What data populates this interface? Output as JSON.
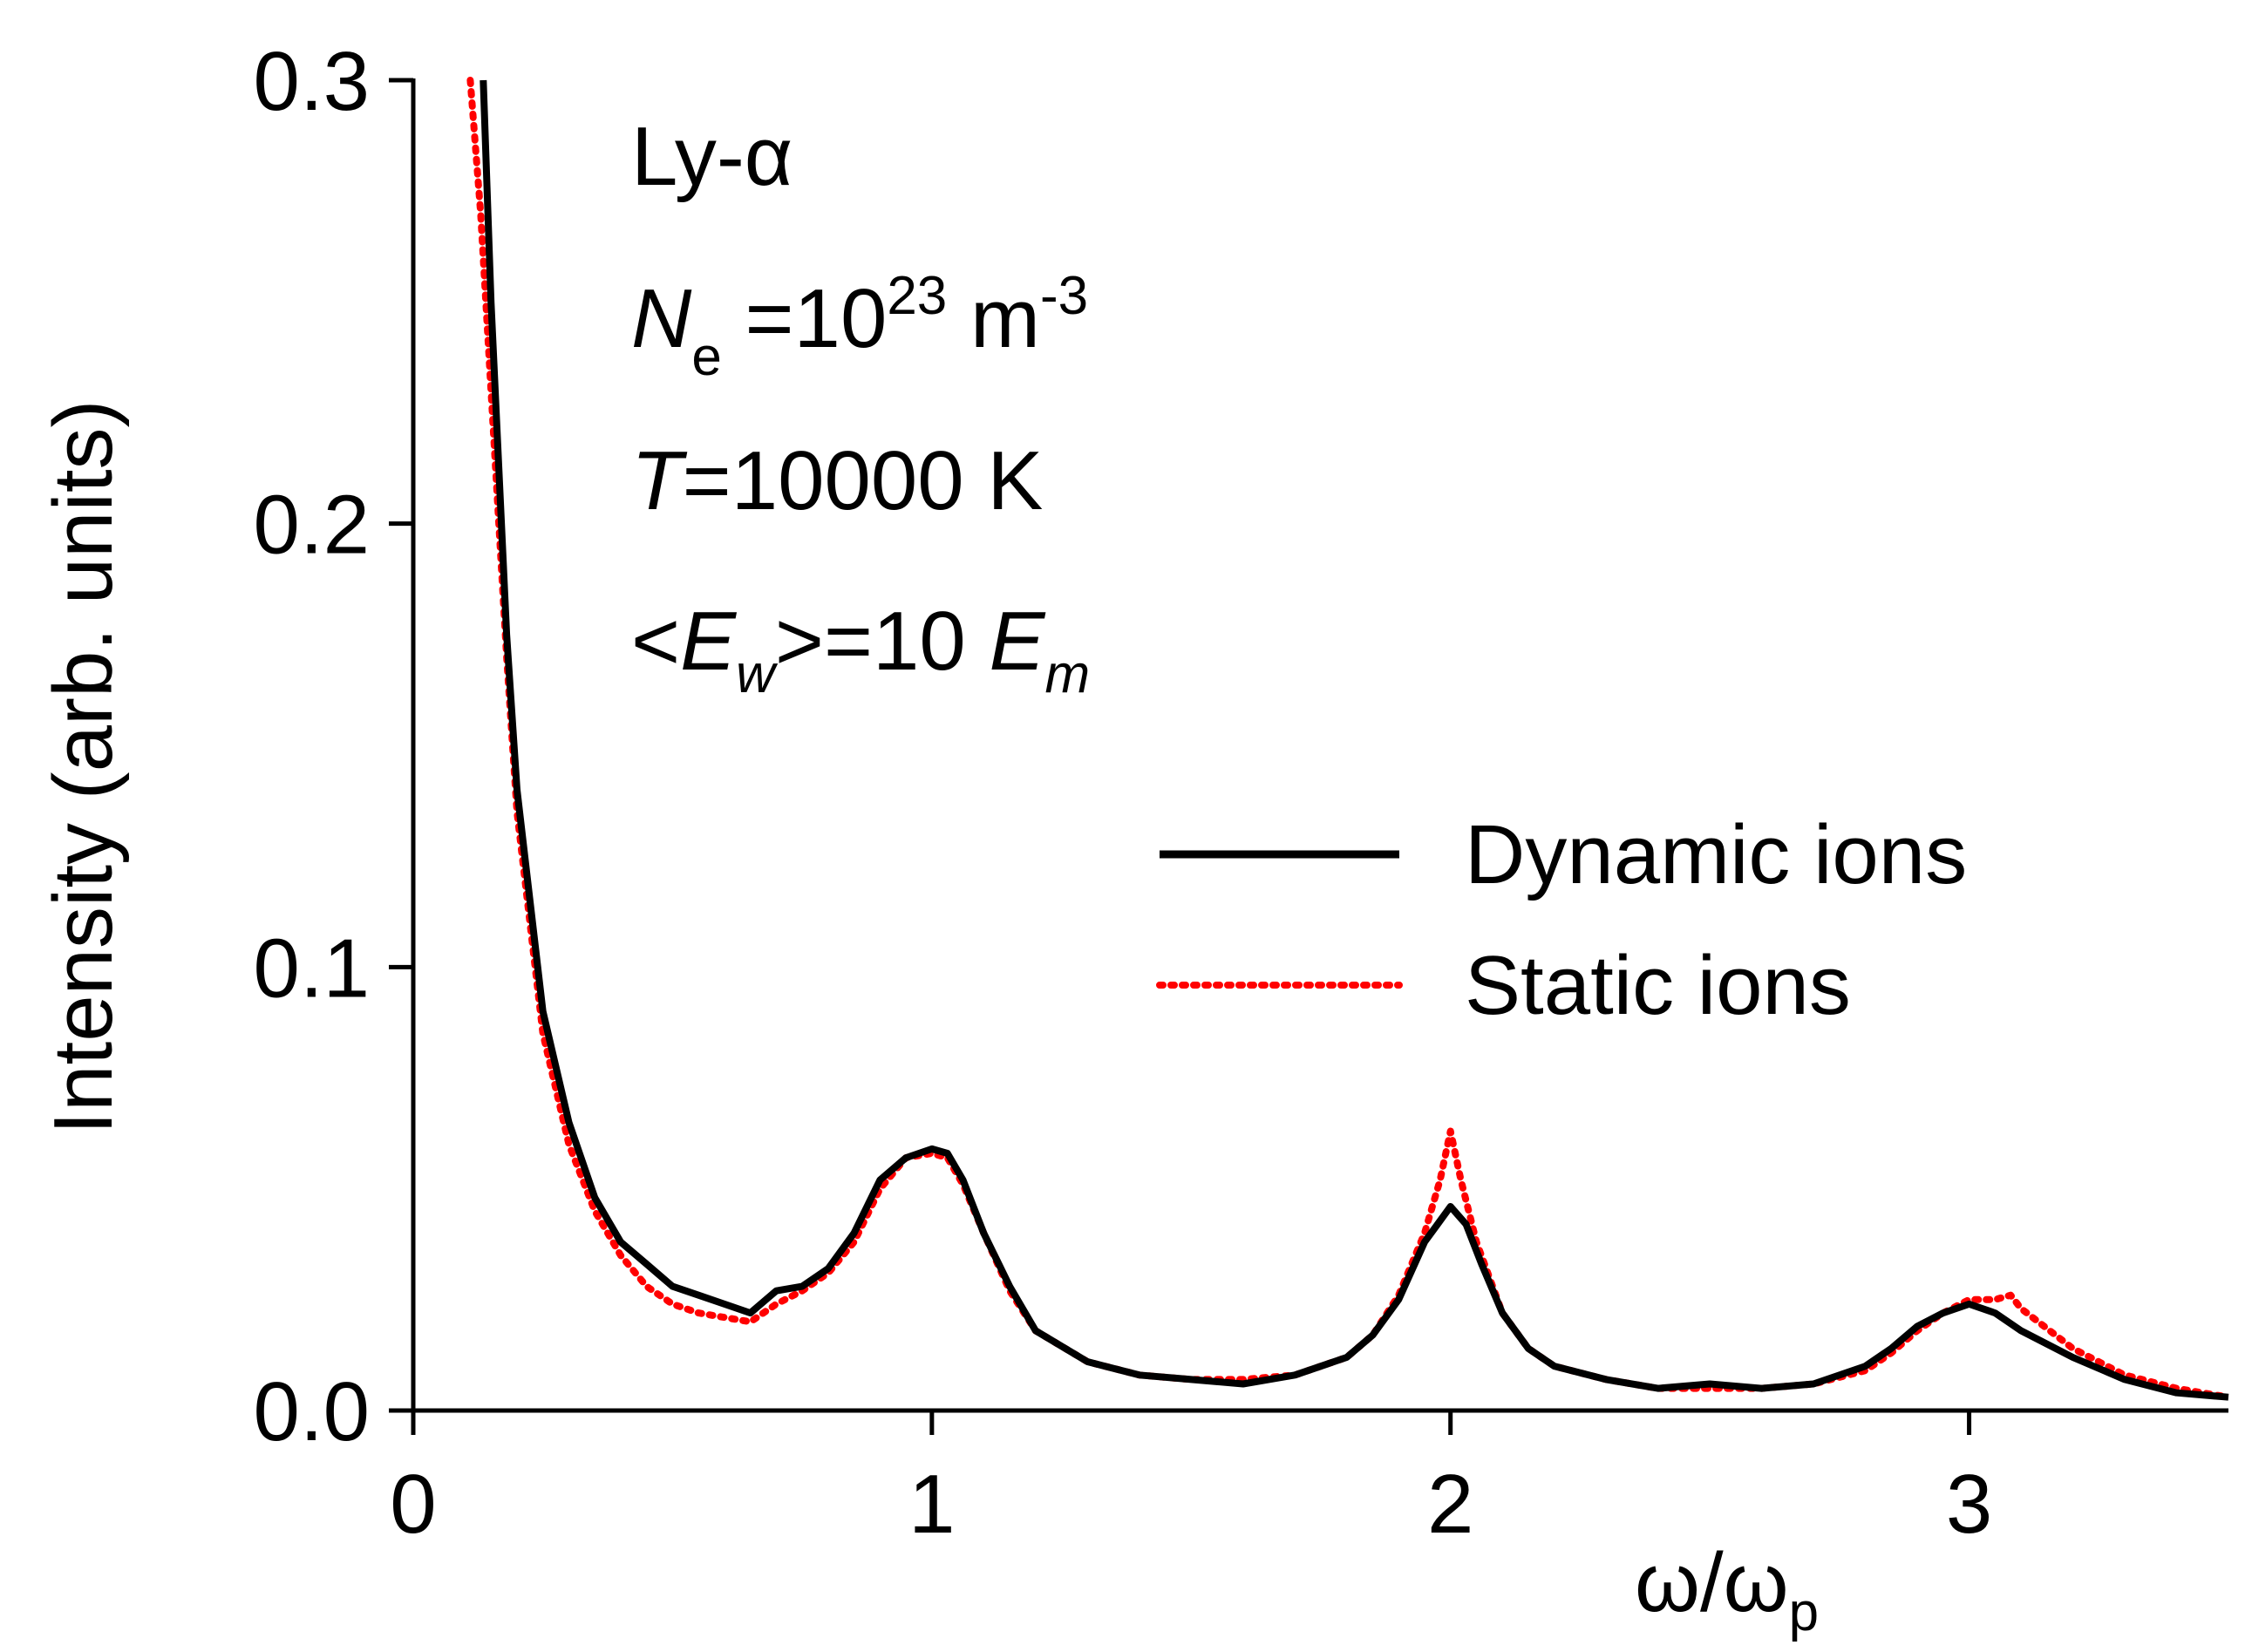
{
  "chart_data": {
    "type": "line",
    "title": "",
    "xlabel": {
      "base": "ω/ω",
      "sub": "p"
    },
    "ylabel": "Intensity (arb. units)",
    "xlim": [
      0,
      3.5
    ],
    "ylim": [
      0,
      0.3
    ],
    "xticks": [
      "0",
      "1",
      "2",
      "3"
    ],
    "xtick_values": [
      0,
      1,
      2,
      3
    ],
    "yticks": [
      "0.0",
      "0.1",
      "0.2",
      "0.3"
    ],
    "ytick_values": [
      0.0,
      0.1,
      0.2,
      0.3
    ],
    "grid": false,
    "legend_position": "right",
    "annotations": {
      "line1": "Ly-α",
      "line2": {
        "italic": "N",
        "sub": "e",
        "text": " =10",
        "sup": "23",
        "unit": " m",
        "unit_sup": "-3"
      },
      "line3": {
        "italic": "T",
        "text": "=10000 K"
      },
      "line4": {
        "open": "<",
        "italic1": "E",
        "sub1": "w",
        "text": ">=10 ",
        "italic2": "E",
        "sub2": "m"
      }
    },
    "series": [
      {
        "name": "Dynamic ions",
        "color": "#000000",
        "style": "solid",
        "x": [
          0.135,
          0.15,
          0.18,
          0.2,
          0.25,
          0.3,
          0.35,
          0.4,
          0.45,
          0.5,
          0.55,
          0.6,
          0.65,
          0.7,
          0.75,
          0.8,
          0.85,
          0.9,
          0.95,
          1.0,
          1.03,
          1.06,
          1.1,
          1.15,
          1.2,
          1.3,
          1.4,
          1.5,
          1.6,
          1.7,
          1.8,
          1.85,
          1.9,
          1.95,
          2.0,
          2.03,
          2.06,
          2.1,
          2.15,
          2.2,
          2.3,
          2.4,
          2.5,
          2.6,
          2.7,
          2.8,
          2.85,
          2.9,
          2.95,
          3.0,
          3.05,
          3.1,
          3.2,
          3.3,
          3.4,
          3.5
        ],
        "y": [
          0.3,
          0.25,
          0.175,
          0.14,
          0.09,
          0.065,
          0.048,
          0.038,
          0.033,
          0.028,
          0.026,
          0.024,
          0.022,
          0.027,
          0.028,
          0.032,
          0.04,
          0.052,
          0.057,
          0.059,
          0.058,
          0.052,
          0.04,
          0.028,
          0.018,
          0.011,
          0.008,
          0.007,
          0.006,
          0.008,
          0.012,
          0.017,
          0.025,
          0.038,
          0.046,
          0.042,
          0.033,
          0.022,
          0.014,
          0.01,
          0.007,
          0.005,
          0.006,
          0.005,
          0.006,
          0.01,
          0.014,
          0.019,
          0.022,
          0.024,
          0.022,
          0.018,
          0.012,
          0.007,
          0.004,
          0.003
        ]
      },
      {
        "name": "Static ions",
        "color": "#ff0000",
        "style": "dotted",
        "x": [
          0.11,
          0.13,
          0.15,
          0.18,
          0.2,
          0.25,
          0.3,
          0.35,
          0.4,
          0.45,
          0.5,
          0.55,
          0.6,
          0.65,
          0.7,
          0.75,
          0.8,
          0.85,
          0.9,
          0.95,
          1.0,
          1.03,
          1.06,
          1.1,
          1.15,
          1.2,
          1.3,
          1.4,
          1.5,
          1.6,
          1.7,
          1.8,
          1.85,
          1.9,
          1.95,
          1.98,
          2.0,
          2.02,
          2.05,
          2.1,
          2.15,
          2.2,
          2.3,
          2.4,
          2.5,
          2.6,
          2.7,
          2.8,
          2.85,
          2.9,
          2.95,
          3.0,
          3.05,
          3.08,
          3.1,
          3.2,
          3.3,
          3.4,
          3.5
        ],
        "y": [
          0.3,
          0.27,
          0.23,
          0.17,
          0.135,
          0.085,
          0.06,
          0.045,
          0.035,
          0.028,
          0.024,
          0.022,
          0.021,
          0.02,
          0.024,
          0.027,
          0.031,
          0.038,
          0.05,
          0.057,
          0.058,
          0.057,
          0.051,
          0.04,
          0.027,
          0.018,
          0.011,
          0.008,
          0.007,
          0.007,
          0.008,
          0.012,
          0.017,
          0.026,
          0.04,
          0.052,
          0.063,
          0.052,
          0.038,
          0.022,
          0.014,
          0.01,
          0.007,
          0.005,
          0.005,
          0.005,
          0.006,
          0.009,
          0.013,
          0.018,
          0.022,
          0.025,
          0.025,
          0.026,
          0.023,
          0.014,
          0.008,
          0.005,
          0.003
        ]
      }
    ]
  }
}
